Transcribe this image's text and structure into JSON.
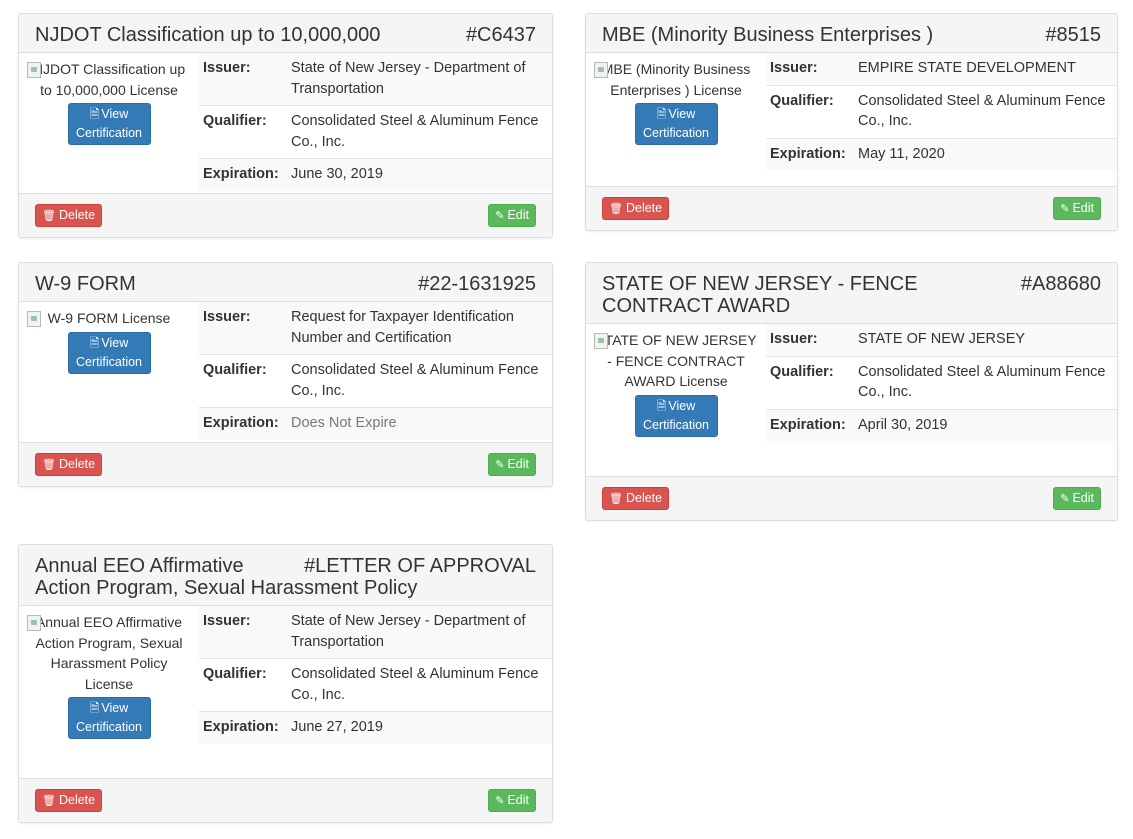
{
  "labels": {
    "issuer": "Issuer:",
    "qualifier": "Qualifier:",
    "expiration": "Expiration:",
    "view_line1": "View",
    "view_line2": "Certification",
    "delete": "Delete",
    "edit": "Edit"
  },
  "icons": {
    "view": "document-icon",
    "delete": "trash-icon",
    "edit": "edit-icon",
    "image": "broken-image-icon"
  },
  "colors": {
    "view_button": "#337ab7",
    "delete_button": "#d9534f",
    "edit_button": "#5cb85c"
  },
  "cards": [
    {
      "title": "NJDOT Classification up to 10,000,000",
      "code": "#C6437",
      "image_alt": "NJDOT Classification up to 10,000,000 License",
      "issuer": "State of New Jersey - Department of Transportation",
      "qualifier": "Consolidated Steel & Aluminum Fence Co., Inc.",
      "expiration": "June 30, 2019"
    },
    {
      "title": "MBE (Minority Business Enterprises )",
      "code": "#8515",
      "image_alt": "MBE (Minority Business Enterprises ) License",
      "issuer": "EMPIRE STATE DEVELOPMENT",
      "qualifier": "Consolidated Steel & Aluminum Fence Co., Inc.",
      "expiration": "May 11, 2020"
    },
    {
      "title": "W-9 FORM",
      "code": "#22-1631925",
      "image_alt": "W-9 FORM License",
      "issuer": "Request for Taxpayer Identification Number and Certification",
      "qualifier": "Consolidated Steel & Aluminum Fence Co., Inc.",
      "expiration": "Does Not Expire"
    },
    {
      "title": "STATE OF NEW JERSEY - FENCE CONTRACT AWARD",
      "code": "#A88680",
      "image_alt": "STATE OF NEW JERSEY - FENCE CONTRACT AWARD License",
      "issuer": "STATE OF NEW JERSEY",
      "qualifier": "Consolidated Steel & Aluminum Fence Co., Inc.",
      "expiration": "April 30, 2019"
    },
    {
      "title": "Annual EEO Affirmative Action Program, Sexual Harassment Policy",
      "code": "#LETTER OF APPROVAL",
      "image_alt": "Annual EEO Affirmative Action Program, Sexual Harassment Policy License",
      "issuer": "State of New Jersey - Department of Transportation",
      "qualifier": "Consolidated Steel & Aluminum Fence Co., Inc.",
      "expiration": "June 27, 2019"
    }
  ]
}
